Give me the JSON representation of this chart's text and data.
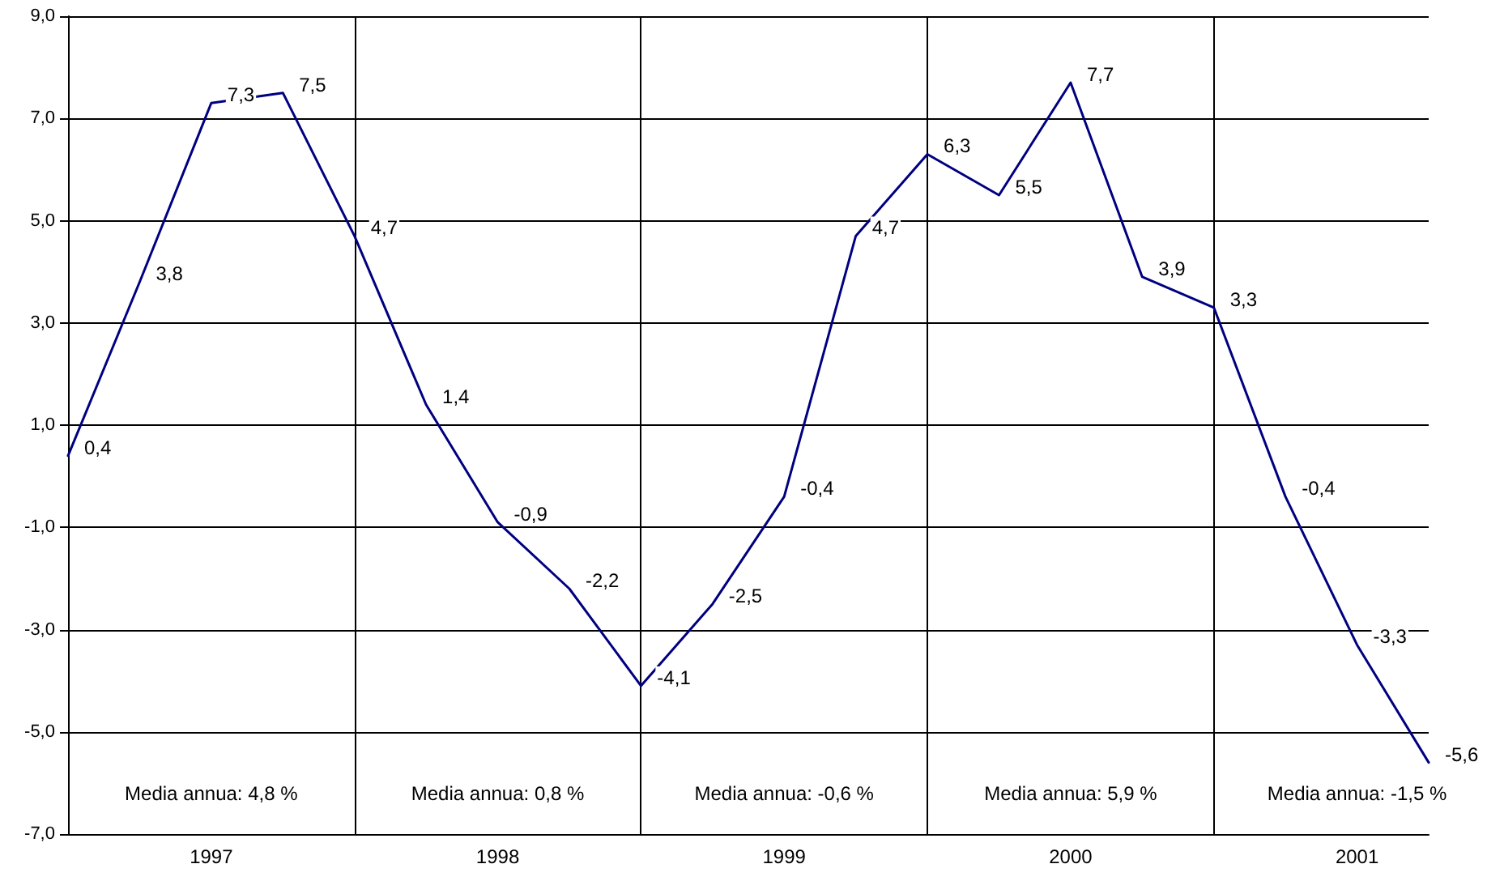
{
  "chart_data": {
    "type": "line",
    "categories": [
      null,
      null,
      "1997",
      null,
      null,
      null,
      "1998",
      null,
      null,
      null,
      "1999",
      null,
      null,
      null,
      "2000",
      null,
      null,
      null,
      "2001",
      null
    ],
    "series": [
      {
        "color": "#000080",
        "values": [
          0.4,
          3.8,
          7.3,
          7.5,
          4.7,
          1.4,
          -0.9,
          -2.2,
          -4.1,
          -2.5,
          -0.4,
          4.7,
          6.3,
          5.5,
          7.7,
          3.9,
          3.3,
          -0.4,
          -3.3,
          -5.6
        ],
        "value_labels": [
          "0,4",
          "3,8",
          "7,3",
          "7,5",
          "4,7",
          "1,4",
          "-0,9",
          "-2,2",
          "-4,1",
          "-2,5",
          "-0,4",
          "4,7",
          "6,3",
          "5,5",
          "7,7",
          "3,9",
          "3,3",
          "-0,4",
          "-3,3",
          "-5,6"
        ]
      }
    ],
    "ylim": [
      -7,
      9
    ],
    "yticks": [
      {
        "value": -7,
        "label": "-7,0"
      },
      {
        "value": -5,
        "label": "-5,0"
      },
      {
        "value": -3,
        "label": "-3,0"
      },
      {
        "value": -1,
        "label": "-1,0"
      },
      {
        "value": 1,
        "label": "1,0"
      },
      {
        "value": 3,
        "label": "3,0"
      },
      {
        "value": 5,
        "label": "5,0"
      },
      {
        "value": 7,
        "label": "7,0"
      },
      {
        "value": 9,
        "label": "9,0"
      }
    ],
    "annotations": [
      "Media annua: 4,8 %",
      "Media annua: 0,8 %",
      "Media annua: -0,6 %",
      "Media annua: 5,9 %",
      "Media annua: -1,5 %"
    ],
    "grid": true,
    "marker": "none",
    "line_style": "solid"
  }
}
